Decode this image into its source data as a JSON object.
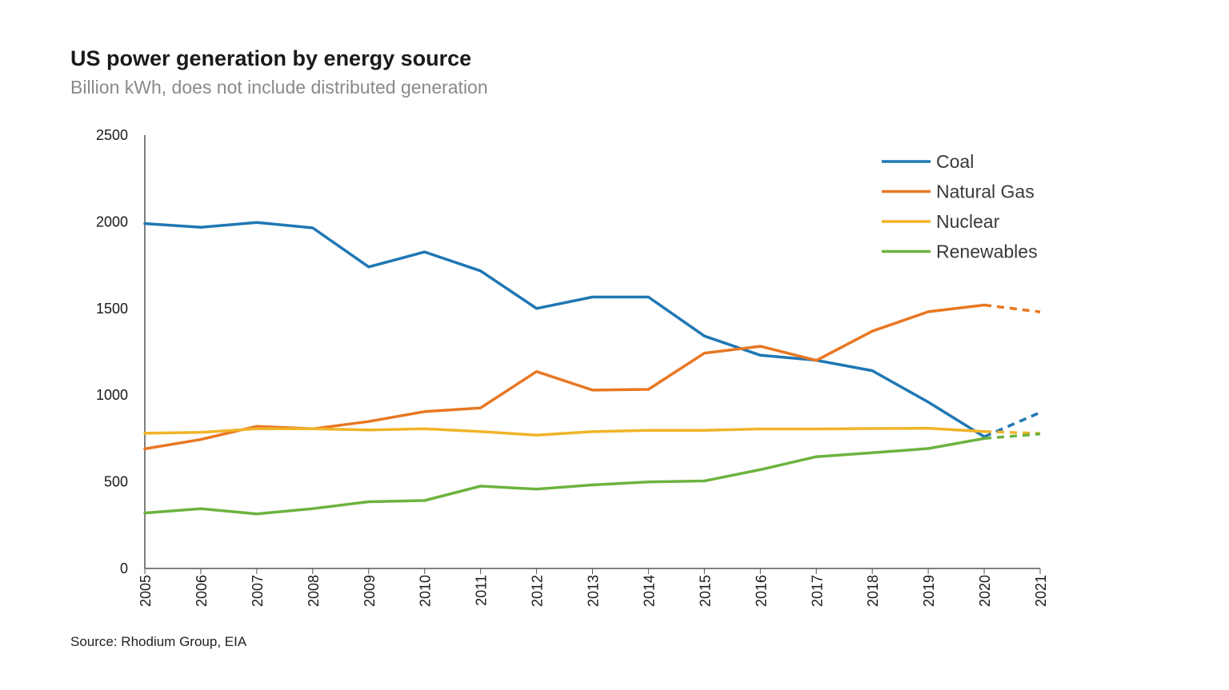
{
  "header": {
    "title": "US power generation by energy source",
    "subtitle": "Billion kWh, does not include distributed generation"
  },
  "footer": {
    "source": "Source: Rhodium Group, EIA"
  },
  "chart_data": {
    "type": "line",
    "title": "US power generation by energy source",
    "subtitle": "Billion kWh, does not include distributed generation",
    "xlabel": "",
    "ylabel": "",
    "x": [
      2005,
      2006,
      2007,
      2008,
      2009,
      2010,
      2011,
      2012,
      2013,
      2014,
      2015,
      2016,
      2017,
      2018,
      2019,
      2020,
      2021
    ],
    "y_ticks": [
      0,
      500,
      1000,
      1500,
      2000,
      2500
    ],
    "ylim": [
      0,
      2500
    ],
    "xlim": [
      2005,
      2021
    ],
    "grid": false,
    "legend_position": "top-right",
    "projected_from": 2020,
    "series": [
      {
        "name": "Coal",
        "color": "#1f77b4",
        "values": [
          1990,
          1968,
          1996,
          1965,
          1740,
          1826,
          1717,
          1500,
          1566,
          1566,
          1341,
          1230,
          1201,
          1141,
          960,
          760,
          900
        ]
      },
      {
        "name": "Natural Gas",
        "color": "#e87722",
        "values": [
          690,
          744,
          820,
          806,
          848,
          905,
          926,
          1136,
          1029,
          1033,
          1242,
          1282,
          1200,
          1369,
          1481,
          1520,
          1480
        ]
      },
      {
        "name": "Nuclear",
        "color": "#f0b429",
        "values": [
          780,
          785,
          806,
          806,
          799,
          806,
          790,
          769,
          789,
          797,
          797,
          805,
          805,
          807,
          809,
          790,
          779
        ]
      },
      {
        "name": "Renewables",
        "color": "#6db33f",
        "values": [
          320,
          345,
          315,
          345,
          385,
          392,
          475,
          458,
          482,
          499,
          505,
          570,
          645,
          668,
          692,
          750,
          776
        ]
      }
    ]
  }
}
